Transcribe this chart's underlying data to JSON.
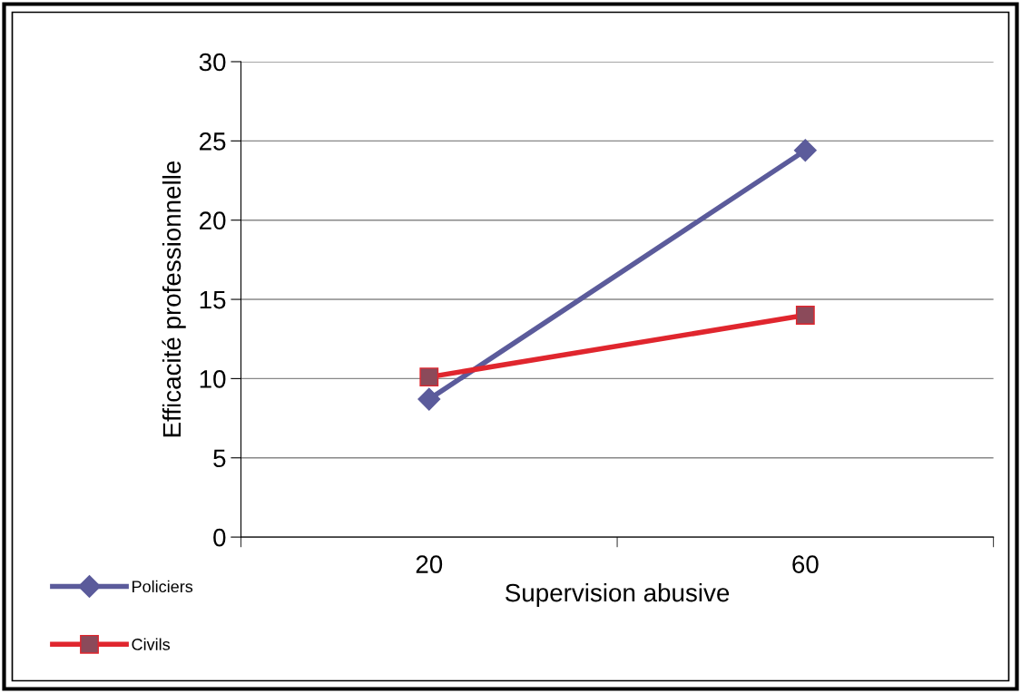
{
  "chart_data": {
    "type": "line",
    "xlabel": "Supervision abusive",
    "ylabel": "Efficacité professionnelle",
    "categories": [
      "20",
      "60"
    ],
    "series": [
      {
        "name": "Policiers",
        "color": "#5b5b9b",
        "values": [
          8.7,
          24.4
        ],
        "marker": "diamond"
      },
      {
        "name": "Civils",
        "color": "#e0262e",
        "values": [
          10.1,
          14.0
        ],
        "marker": "square"
      }
    ],
    "ylim": [
      0,
      30
    ],
    "yticks": [
      0,
      5,
      10,
      15,
      20,
      25,
      30
    ],
    "grid": "y",
    "legend": "bottom left",
    "line_style": "solid"
  }
}
